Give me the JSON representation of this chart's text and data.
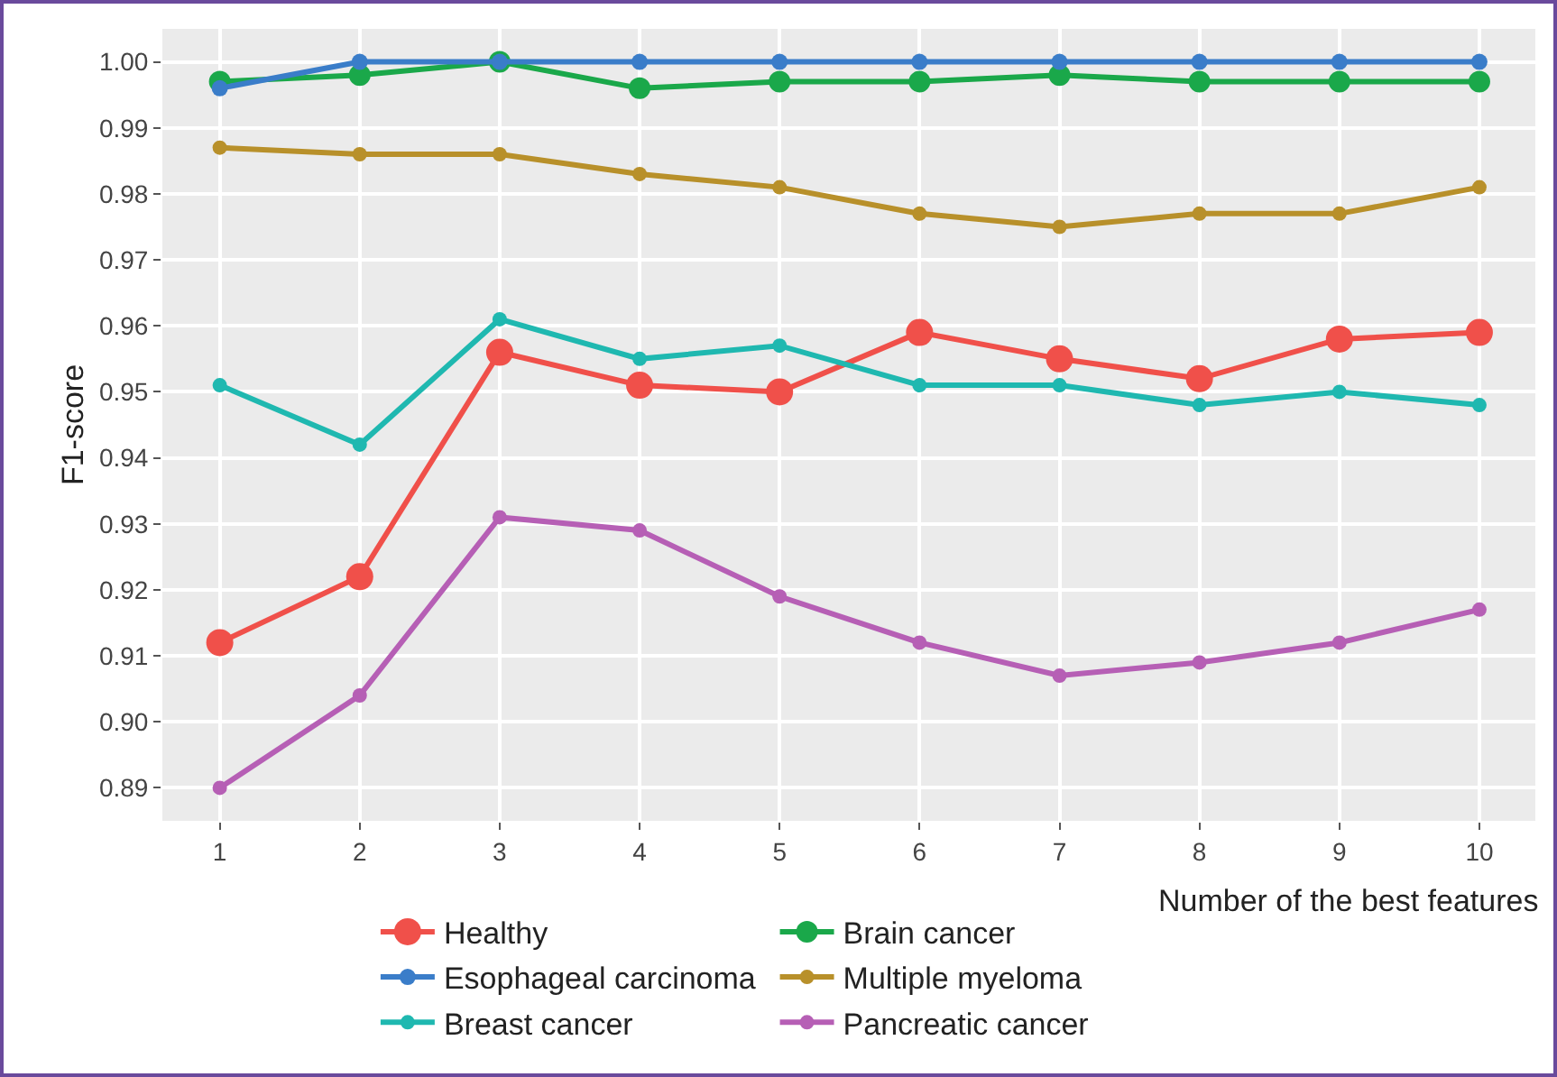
{
  "chart_data": {
    "type": "line",
    "xlabel": "Number of the best features",
    "ylabel": "F1-score",
    "x": [
      1,
      2,
      3,
      4,
      5,
      6,
      7,
      8,
      9,
      10
    ],
    "series": [
      {
        "name": "Healthy",
        "color": "#f0504a",
        "values": [
          0.912,
          0.922,
          0.956,
          0.951,
          0.95,
          0.959,
          0.955,
          0.952,
          0.958,
          0.959
        ]
      },
      {
        "name": "Brain cancer",
        "color": "#1aa84a",
        "values": [
          0.997,
          0.998,
          1.0,
          0.996,
          0.997,
          0.997,
          0.998,
          0.997,
          0.997,
          0.997
        ]
      },
      {
        "name": "Esophageal carcinoma",
        "color": "#3a7dc9",
        "values": [
          0.996,
          1.0,
          1.0,
          1.0,
          1.0,
          1.0,
          1.0,
          1.0,
          1.0,
          1.0
        ]
      },
      {
        "name": "Multiple myeloma",
        "color": "#b8902a",
        "values": [
          0.987,
          0.986,
          0.986,
          0.983,
          0.981,
          0.977,
          0.975,
          0.977,
          0.977,
          0.981
        ]
      },
      {
        "name": "Breast cancer",
        "color": "#1fb8b0",
        "values": [
          0.951,
          0.942,
          0.961,
          0.955,
          0.957,
          0.951,
          0.951,
          0.948,
          0.95,
          0.948
        ]
      },
      {
        "name": "Pancreatic cancer",
        "color": "#b65fb5",
        "values": [
          0.89,
          0.904,
          0.931,
          0.929,
          0.919,
          0.912,
          0.907,
          0.909,
          0.912,
          0.917
        ]
      }
    ],
    "xlim": [
      0.59,
      10.4
    ],
    "xticks": [
      1,
      2,
      3,
      4,
      5,
      6,
      7,
      8,
      9,
      10
    ],
    "ylim": [
      0.885,
      1.005
    ],
    "yticks": [
      {
        "value": 0.89,
        "label": "0.89"
      },
      {
        "value": 0.9,
        "label": "0.90"
      },
      {
        "value": 0.91,
        "label": "0.91"
      },
      {
        "value": 0.92,
        "label": "0.92"
      },
      {
        "value": 0.93,
        "label": "0.93"
      },
      {
        "value": 0.94,
        "label": "0.94"
      },
      {
        "value": 0.95,
        "label": "0.95"
      },
      {
        "value": 0.96,
        "label": "0.96"
      },
      {
        "value": 0.97,
        "label": "0.97"
      },
      {
        "value": 0.98,
        "label": "0.98"
      },
      {
        "value": 0.99,
        "label": "0.99"
      },
      {
        "value": 1,
        "label": "1.00"
      }
    ],
    "grid": true,
    "legend": "bottom",
    "marker": "circle",
    "line_style": "solid"
  }
}
